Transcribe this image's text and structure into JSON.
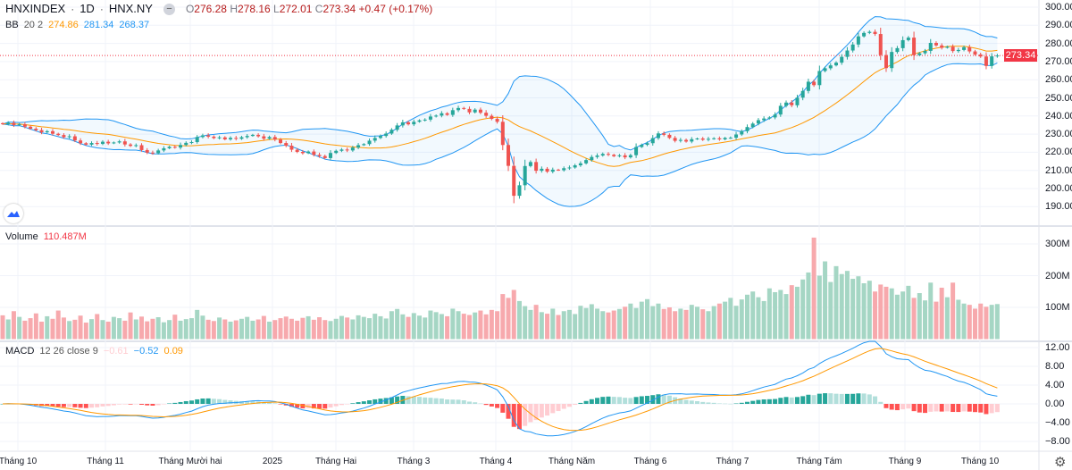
{
  "header": {
    "symbol": "HNXINDEX",
    "interval": "1D",
    "exchange": "HNX.NY",
    "separator": "·",
    "collapse_icon": "minus-icon",
    "open_key": "O",
    "open": "276.28",
    "high_key": "H",
    "high": "278.16",
    "low_key": "L",
    "low": "272.01",
    "close_key": "C",
    "close": "273.34",
    "change": "+0.47 (+0.17%)"
  },
  "bb_legend": {
    "name": "BB",
    "params": "20 2",
    "basis": "274.86",
    "upper": "281.34",
    "lower": "268.37"
  },
  "volume_legend": {
    "name": "Volume",
    "value": "110.487M"
  },
  "macd_legend": {
    "name": "MACD",
    "params": "12 26 close 9",
    "histogram": "−0.61",
    "macd": "−0.52",
    "signal": "0.09"
  },
  "price_axis": {
    "ticks": [
      "300.00",
      "290.00",
      "280.00",
      "270.00",
      "260.00",
      "250.00",
      "240.00",
      "230.00",
      "220.00",
      "210.00",
      "200.00",
      "190.00"
    ],
    "current_price_label": "273.34"
  },
  "volume_axis": {
    "ticks": [
      "300M",
      "200M",
      "100M"
    ]
  },
  "macd_axis": {
    "ticks": [
      "12.00",
      "8.00",
      "4.00",
      "0.00",
      "−4.00",
      "−8.00"
    ]
  },
  "time_axis": {
    "ticks": [
      "Tháng 10",
      "Tháng 11",
      "Tháng Mười hai",
      "2025",
      "Tháng Hai",
      "Tháng 3",
      "Tháng 4",
      "Tháng Năm",
      "Tháng 6",
      "Tháng 7",
      "Tháng Tám",
      "Tháng 9",
      "Tháng 10"
    ]
  },
  "colors": {
    "up": "#26a69a",
    "down": "#ef5350",
    "bb_band": "#2196f3",
    "bb_basis": "#ff9800",
    "macd": "#2196f3",
    "signal": "#ff9800",
    "vol_up": "#a5d6c4",
    "vol_down": "#f7a9ad",
    "last_price": "#f23645"
  },
  "icons": {
    "logo": "tradingview-logo-icon",
    "settings": "gear-icon"
  },
  "chart_data": {
    "type": "candlestick",
    "price_range": [
      185,
      302
    ],
    "volume_range_millions": [
      0,
      330
    ],
    "macd_range": [
      -10,
      13
    ],
    "grid": true,
    "close": [
      235.5,
      236.2,
      235.0,
      235.4,
      234.1,
      233.0,
      232.2,
      231.0,
      231.6,
      230.2,
      229.5,
      228.3,
      228.8,
      226.5,
      225.0,
      224.2,
      225.1,
      224.6,
      225.8,
      224.9,
      225.4,
      226.0,
      224.3,
      223.5,
      223.9,
      221.2,
      219.8,
      219.5,
      221.0,
      222.2,
      223.0,
      222.6,
      224.0,
      225.2,
      225.6,
      228.4,
      229.3,
      228.6,
      227.8,
      228.2,
      227.1,
      227.9,
      227.4,
      228.3,
      229.0,
      229.6,
      228.8,
      227.5,
      228.4,
      227.0,
      225.1,
      223.6,
      221.4,
      220.2,
      219.5,
      220.4,
      218.6,
      217.9,
      216.8,
      219.6,
      220.8,
      221.5,
      221.0,
      222.6,
      223.9,
      224.5,
      226.4,
      227.9,
      229.0,
      230.3,
      232.4,
      234.8,
      236.5,
      235.4,
      236.8,
      237.6,
      238.0,
      239.7,
      240.2,
      241.5,
      240.6,
      243.2,
      244.4,
      243.9,
      242.0,
      243.5,
      241.8,
      240.1,
      238.4,
      236.8,
      224.0,
      212.5,
      196.0,
      201.8,
      212.4,
      214.6,
      209.8,
      210.9,
      209.3,
      210.4,
      210.1,
      211.2,
      211.6,
      212.8,
      213.9,
      215.7,
      217.4,
      218.2,
      219.1,
      218.6,
      217.8,
      218.3,
      217.2,
      218.4,
      222.9,
      224.1,
      225.0,
      227.8,
      230.4,
      229.6,
      227.9,
      226.3,
      226.8,
      225.9,
      227.2,
      227.6,
      226.9,
      227.4,
      227.7,
      227.1,
      227.9,
      228.0,
      229.8,
      231.6,
      233.9,
      235.8,
      237.7,
      238.6,
      239.2,
      240.8,
      245.6,
      247.4,
      245.9,
      250.1,
      253.8,
      258.9,
      257.0,
      264.8,
      266.3,
      267.9,
      269.4,
      272.6,
      276.1,
      279.4,
      283.9,
      285.8,
      286.4,
      285.2,
      273.6,
      266.4,
      275.3,
      277.4,
      281.8,
      283.2,
      273.5,
      274.6,
      275.9,
      280.3,
      278.9,
      277.6,
      278.2,
      275.8,
      276.4,
      277.9,
      275.6,
      273.9,
      272.8,
      267.6,
      272.87,
      273.34
    ],
    "volume_millions": [
      75,
      62,
      88,
      70,
      58,
      66,
      81,
      55,
      72,
      64,
      90,
      68,
      57,
      61,
      74,
      52,
      63,
      79,
      60,
      55,
      70,
      66,
      58,
      84,
      62,
      71,
      56,
      64,
      69,
      53,
      60,
      77,
      58,
      63,
      66,
      92,
      74,
      61,
      57,
      68,
      62,
      55,
      59,
      64,
      70,
      58,
      62,
      73,
      55,
      60,
      66,
      71,
      64,
      58,
      67,
      72,
      61,
      69,
      60,
      57,
      64,
      73,
      68,
      62,
      75,
      70,
      66,
      80,
      72,
      65,
      88,
      95,
      78,
      70,
      82,
      74,
      68,
      90,
      85,
      79,
      72,
      96,
      88,
      80,
      76,
      84,
      90,
      78,
      92,
      88,
      142,
      130,
      155,
      120,
      104,
      92,
      108,
      85,
      80,
      96,
      76,
      88,
      92,
      79,
      105,
      98,
      110,
      96,
      88,
      84,
      90,
      95,
      102,
      112,
      98,
      118,
      126,
      104,
      112,
      95,
      100,
      88,
      96,
      92,
      108,
      102,
      94,
      88,
      104,
      112,
      118,
      130,
      105,
      125,
      140,
      150,
      132,
      120,
      160,
      148,
      155,
      142,
      170,
      165,
      188,
      210,
      320,
      200,
      245,
      180,
      230,
      205,
      215,
      190,
      198,
      176,
      184,
      150,
      172,
      165,
      160,
      140,
      150,
      168,
      130,
      145,
      122,
      178,
      118,
      162,
      132,
      178,
      124,
      112,
      108,
      96,
      112,
      102,
      108,
      110.487
    ]
  }
}
